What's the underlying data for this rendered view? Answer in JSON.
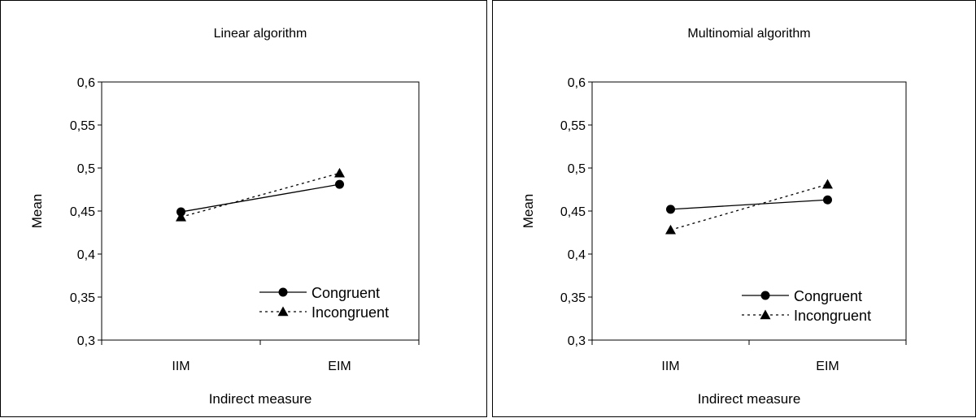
{
  "chart_data": [
    {
      "type": "line",
      "title": "Linear algorithm",
      "xlabel": "Indirect measure",
      "ylabel": "Mean",
      "categories": [
        "IIM",
        "EIM"
      ],
      "ylim": [
        0.3,
        0.6
      ],
      "yticks": [
        "0,3",
        "0,35",
        "0,4",
        "0,45",
        "0,5",
        "0,55",
        "0,6"
      ],
      "grid": false,
      "legend_position": "bottom-right",
      "series": [
        {
          "name": "Congruent",
          "values": [
            0.449,
            0.481
          ],
          "marker": "circle",
          "line": "solid"
        },
        {
          "name": "Incongruent",
          "values": [
            0.443,
            0.494
          ],
          "marker": "triangle",
          "line": "dotted"
        }
      ]
    },
    {
      "type": "line",
      "title": "Multinomial algorithm",
      "xlabel": "Indirect measure",
      "ylabel": "Mean",
      "categories": [
        "IIM",
        "EIM"
      ],
      "ylim": [
        0.3,
        0.6
      ],
      "yticks": [
        "0,3",
        "0,35",
        "0,4",
        "0,45",
        "0,5",
        "0,55",
        "0,6"
      ],
      "grid": false,
      "legend_position": "bottom-right",
      "series": [
        {
          "name": "Congruent",
          "values": [
            0.452,
            0.463
          ],
          "marker": "circle",
          "line": "solid"
        },
        {
          "name": "Incongruent",
          "values": [
            0.428,
            0.481
          ],
          "marker": "triangle",
          "line": "dotted"
        }
      ]
    }
  ]
}
